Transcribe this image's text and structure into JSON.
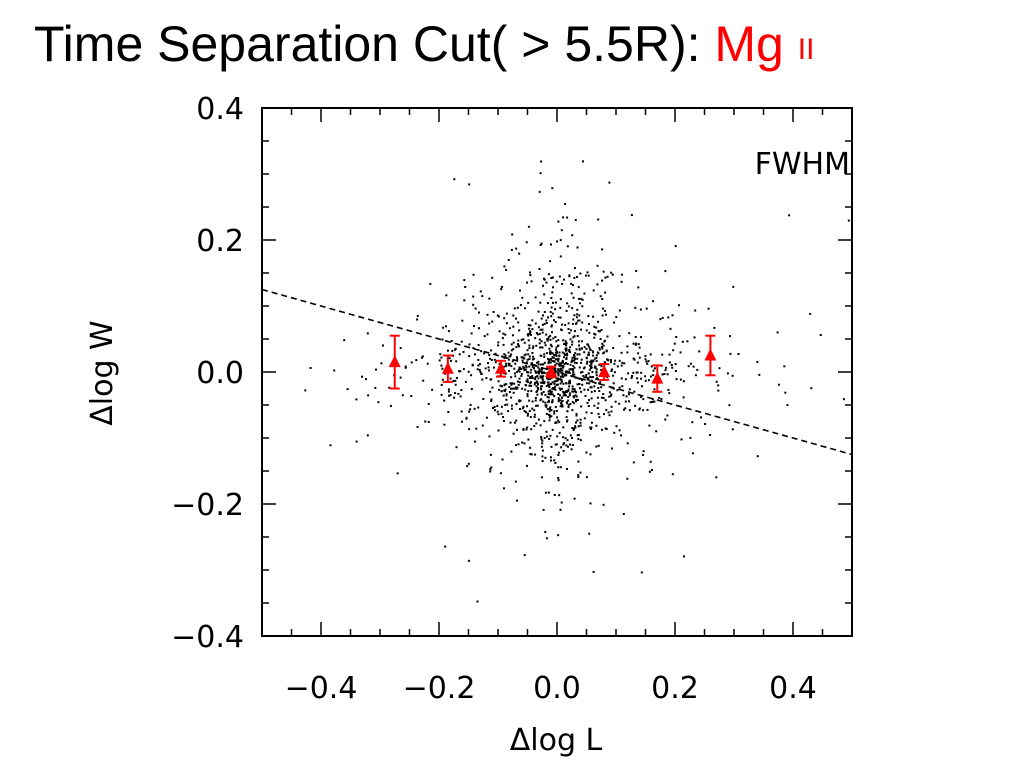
{
  "slide": {
    "title_main": "Time Separation Cut( > 5.5R): ",
    "title_highlight": "Mg ",
    "title_highlight_roman": "II",
    "highlight_color": "#ff0000"
  },
  "chart_data": {
    "type": "scatter",
    "annotation": "FWHM",
    "xlabel": "Δlog  L",
    "ylabel": "Δlog  W",
    "xlim": [
      -0.5,
      0.5
    ],
    "ylim": [
      -0.4,
      0.4
    ],
    "xticks": [
      -0.4,
      -0.2,
      0.0,
      0.2,
      0.4
    ],
    "xtick_labels": [
      "−0.4",
      "−0.2",
      "0.0",
      "0.2",
      "0.4"
    ],
    "yticks": [
      -0.4,
      -0.2,
      0.0,
      0.2,
      0.4
    ],
    "ytick_labels": [
      "−0.4",
      "−0.2",
      "0.0",
      "0.2",
      "0.4"
    ],
    "grid": false,
    "point_color": "#000000",
    "marker_color": "#ff0000",
    "scatter_points": {
      "count": 1500,
      "x_center": 0.0,
      "x_spread": 0.1,
      "y_center": 0.0,
      "y_spread": 0.075
    },
    "binned_means": {
      "x": [
        -0.275,
        -0.185,
        -0.095,
        -0.01,
        0.08,
        0.17,
        0.26
      ],
      "y": [
        0.015,
        0.005,
        0.005,
        0.0,
        0.0,
        -0.01,
        0.025
      ],
      "yerr": [
        0.04,
        0.02,
        0.012,
        0.008,
        0.012,
        0.02,
        0.03
      ]
    },
    "fit_line": {
      "x": [
        -0.5,
        0.5
      ],
      "y": [
        0.125,
        -0.125
      ],
      "style": "dashed"
    }
  }
}
